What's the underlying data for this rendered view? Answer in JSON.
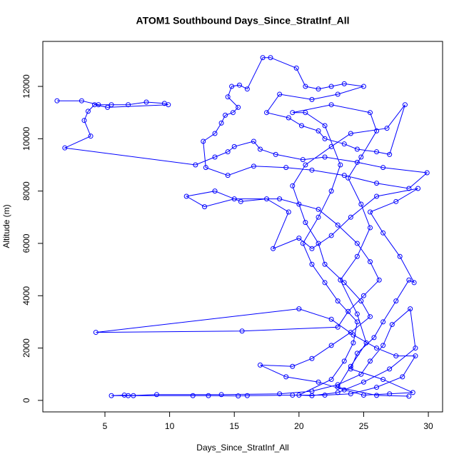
{
  "chart_data": {
    "type": "line",
    "title": "ATOM1 Southbound Days_Since_StratInf_All",
    "xlabel": "Days_Since_StratInf_All",
    "ylabel": "Altitude (m)",
    "color": "#0000ff",
    "markers": "open-circle",
    "xlim": [
      0.2,
      31.1
    ],
    "ylim": [
      -440,
      13720
    ],
    "xticks": [
      5,
      10,
      15,
      20,
      25,
      30
    ],
    "yticks": [
      0,
      2000,
      4000,
      6000,
      8000,
      10000,
      12000
    ],
    "x": [
      1.3,
      3.2,
      4.5,
      5.5,
      6.8,
      8.2,
      9.6,
      9.9,
      5.2,
      4.2,
      3.7,
      3.4,
      3.9,
      1.9,
      12.0,
      13.5,
      14.5,
      15.0,
      16.5,
      17.0,
      18.2,
      20.3,
      22.0,
      24.5,
      26.5,
      29.9,
      28.5,
      26.0,
      23.5,
      21.0,
      19.0,
      16.5,
      14.5,
      12.8,
      12.6,
      13.5,
      14.0,
      14.3,
      14.9,
      15.3,
      14.5,
      14.8,
      15.4,
      16.0,
      17.2,
      17.8,
      19.8,
      20.5,
      21.5,
      22.5,
      23.5,
      25.0,
      23.0,
      21.0,
      18.5,
      17.5,
      19.2,
      20.2,
      21.5,
      22.0,
      23.5,
      24.5,
      26.0,
      27.0,
      28.2,
      26.8,
      24.0,
      22.5,
      20.5,
      19.5,
      20.0,
      20.5,
      21.5,
      22.0,
      23.5,
      24.8,
      25.5,
      24.0,
      22.5,
      21.0,
      19.5,
      17.0,
      19.0,
      21.5,
      23.5,
      25.0,
      27.0,
      28.8,
      26.5,
      24.0,
      24.5,
      25.8,
      26.5,
      27.5,
      28.5,
      28.9,
      27.8,
      26.5,
      25.5,
      27.5,
      29.2,
      26.0,
      24.0,
      22.5,
      21.0,
      20.0,
      18.0,
      19.2,
      17.5,
      15.5,
      13.5,
      11.3,
      12.7,
      15.0,
      18.5,
      21.5,
      23.0,
      24.5,
      25.5,
      26.2,
      25.0,
      23.8,
      23.0,
      15.6,
      4.3,
      20.0,
      22.5,
      24.2,
      26.0,
      27.5,
      29.0,
      28.0,
      26.0,
      24.0,
      22.0,
      19.5,
      16.0,
      15.3,
      13.0,
      11.8,
      7.2,
      6.5,
      5.5,
      6.8,
      9.0,
      14.0,
      18.5,
      21.0,
      23.0,
      24.8,
      25.5,
      26.5,
      27.2,
      28.6,
      29.0,
      27.0,
      25.0,
      23.0,
      21.0,
      20.0,
      22.5,
      23.5,
      24.2,
      24.5,
      23.0,
      22.0,
      21.0,
      20.3,
      21.5,
      22.5,
      23.2,
      22.0,
      20.5,
      19.5,
      22.5,
      25.5,
      26.0,
      24.8,
      23.8,
      24.8,
      25.5,
      24.5,
      23.2,
      24.5,
      25.2,
      24.0,
      23.0,
      26.0,
      28.5
    ],
    "values": [
      11450,
      11450,
      11300,
      11300,
      11300,
      11400,
      11350,
      11300,
      11200,
      11300,
      11050,
      10700,
      10100,
      9650,
      9000,
      9300,
      9500,
      9700,
      9900,
      9600,
      9400,
      9200,
      9300,
      9100,
      8900,
      8700,
      8100,
      8300,
      8600,
      8800,
      8900,
      8950,
      8600,
      8900,
      9900,
      10200,
      10600,
      10900,
      11000,
      11200,
      11600,
      12000,
      12050,
      11900,
      13100,
      13100,
      12700,
      12000,
      11900,
      12000,
      12100,
      12000,
      11700,
      11500,
      11700,
      11000,
      10800,
      10500,
      10300,
      10000,
      9800,
      9600,
      9500,
      9400,
      11300,
      10400,
      10200,
      9700,
      9000,
      8200,
      7500,
      6800,
      6000,
      5200,
      4500,
      3800,
      3200,
      2600,
      2100,
      1600,
      1300,
      1350,
      900,
      700,
      400,
      200,
      250,
      300,
      800,
      1200,
      1800,
      2400,
      3000,
      3800,
      4600,
      4500,
      5500,
      6400,
      7200,
      7600,
      8100,
      7800,
      7000,
      6300,
      5800,
      6200,
      5800,
      7200,
      7700,
      7600,
      8000,
      7800,
      7400,
      7700,
      7700,
      7300,
      6700,
      6000,
      5300,
      4600,
      4000,
      3400,
      2800,
      2650,
      2600,
      3500,
      3100,
      2500,
      2000,
      1700,
      1700,
      900,
      500,
      250,
      200,
      200,
      180,
      170,
      180,
      180,
      180,
      200,
      180,
      180,
      220,
      220,
      250,
      350,
      600,
      1000,
      1500,
      2100,
      2900,
      3500,
      2000,
      1200,
      700,
      300,
      180,
      200,
      800,
      1500,
      2200,
      3000,
      3800,
      4500,
      5200,
      6000,
      7000,
      8000,
      9000,
      10500,
      11000,
      11000,
      11300,
      11000,
      10300,
      9300,
      8500,
      7500,
      6600,
      5500,
      4600,
      3300,
      2200,
      1300,
      500,
      190,
      160
    ]
  }
}
